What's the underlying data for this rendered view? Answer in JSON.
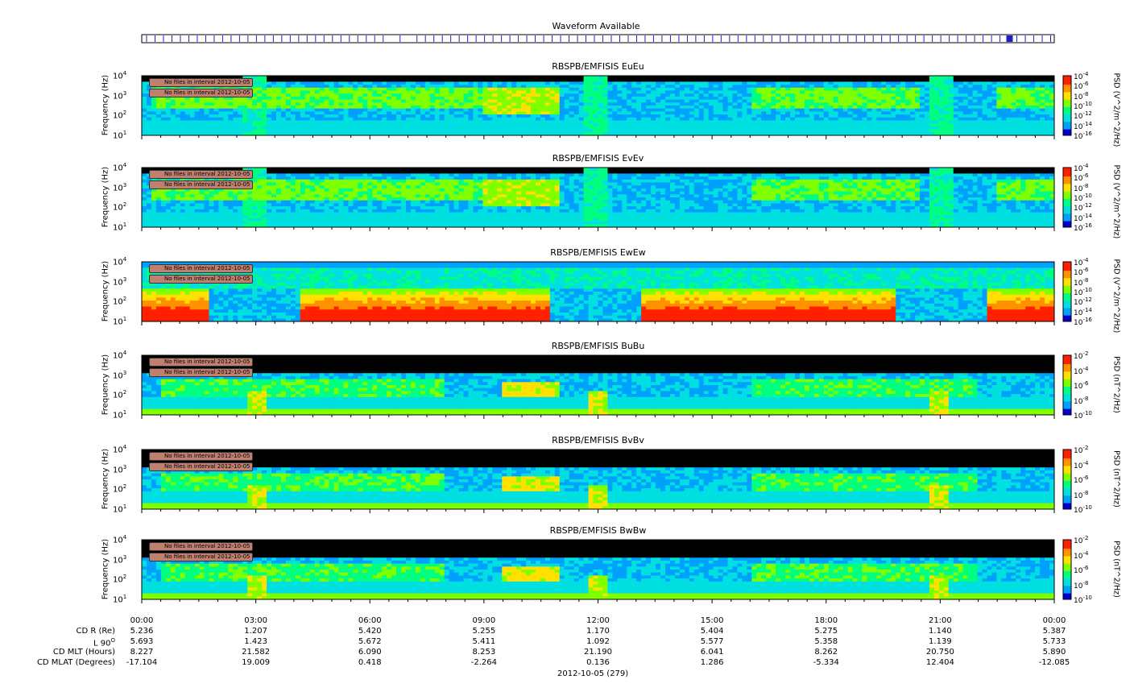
{
  "waveform": {
    "title": "Waveform Available"
  },
  "panels": [
    {
      "id": "eueu",
      "title": "RBSPB/EMFISIS  EuEu",
      "ylabel": "Frequency (Hz)",
      "cblabel": "PSD (V^2/m^2/Hz)",
      "cbticks": [
        "10-4",
        "10-6",
        "10-8",
        "10-10",
        "10-12",
        "10-14",
        "10-16"
      ],
      "kind": "E"
    },
    {
      "id": "evev",
      "title": "RBSPB/EMFISIS  EvEv",
      "ylabel": "Frequency (Hz)",
      "cblabel": "PSD (V^2/m^2/Hz)",
      "cbticks": [
        "10-4",
        "10-6",
        "10-8",
        "10-10",
        "10-12",
        "10-14",
        "10-16"
      ],
      "kind": "E"
    },
    {
      "id": "ewew",
      "title": "RBSPB/EMFISIS  EwEw",
      "ylabel": "Frequency (Hz)",
      "cblabel": "PSD (V^2/m^2/Hz)",
      "cbticks": [
        "10-4",
        "10-6",
        "10-8",
        "10-10",
        "10-12",
        "10-14",
        "10-16"
      ],
      "kind": "Ew"
    },
    {
      "id": "bubu",
      "title": "RBSPB/EMFISIS  BuBu",
      "ylabel": "Frequency (Hz)",
      "cblabel": "PSD (nT^2/Hz)",
      "cbticks": [
        "10-2",
        "10-4",
        "10-6",
        "10-8",
        "10-10"
      ],
      "kind": "B"
    },
    {
      "id": "bvbv",
      "title": "RBSPB/EMFISIS  BvBv",
      "ylabel": "Frequency (Hz)",
      "cblabel": "PSD (nT^2/Hz)",
      "cbticks": [
        "10-2",
        "10-4",
        "10-6",
        "10-8",
        "10-10"
      ],
      "kind": "B"
    },
    {
      "id": "bwbw",
      "title": "RBSPB/EMFISIS  BwBw",
      "ylabel": "Frequency (Hz)",
      "cblabel": "PSD (nT^2/Hz)",
      "cbticks": [
        "10-2",
        "10-4",
        "10-6",
        "10-8",
        "10-10"
      ],
      "kind": "B"
    }
  ],
  "no_files_text": "No files in interval 2012-10-05",
  "chart_data": {
    "type": "heatmap",
    "x_ticks": [
      "00:00",
      "03:00",
      "06:00",
      "09:00",
      "12:00",
      "15:00",
      "18:00",
      "21:00",
      "00:00"
    ],
    "y_ticks": [
      "10^1",
      "10^2",
      "10^3",
      "10^4"
    ],
    "yscale": "log",
    "ylim": [
      10,
      10000
    ],
    "date_label": "2012-10-05 (279)",
    "ephemeris": [
      {
        "label": "CD R (Re)",
        "values": [
          "5.236",
          "1.207",
          "5.420",
          "5.255",
          "1.170",
          "5.404",
          "5.275",
          "1.140",
          "5.387"
        ]
      },
      {
        "label": "L 90",
        "values": [
          "5.693",
          "1.423",
          "5.672",
          "5.411",
          "1.092",
          "5.577",
          "5.358",
          "1.139",
          "5.733"
        ]
      },
      {
        "label": "CD MLT (Hours)",
        "values": [
          "8.227",
          "21.582",
          "6.090",
          "8.253",
          "21.190",
          "6.041",
          "8.262",
          "20.750",
          "5.890"
        ]
      },
      {
        "label": "CD MLAT (Degrees)",
        "values": [
          "-17.104",
          "19.009",
          "0.418",
          "-2.264",
          "0.136",
          "1.286",
          "-5.334",
          "12.404",
          "-12.085"
        ]
      }
    ],
    "perigee_times_hours": [
      3.0,
      11.95,
      21.0
    ]
  },
  "colors": {
    "background": "#000000",
    "low": "#0000c8",
    "mid_low": "#00a0ff",
    "mid": "#00ff80",
    "mid_high": "#80ff00",
    "high": "#ffe000",
    "max": "#ff2000",
    "waveform_line": "#2020c0"
  }
}
